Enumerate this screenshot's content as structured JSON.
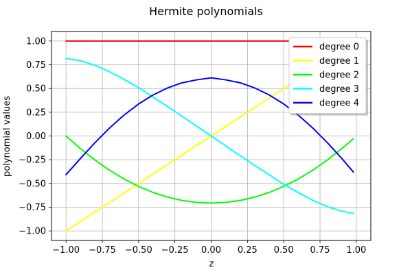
{
  "chart_data": {
    "type": "line",
    "title": "Hermite polynomials",
    "xlabel": "z",
    "ylabel": "polynomial values",
    "xlim": [
      -1.1,
      1.1
    ],
    "ylim": [
      -1.1,
      1.1
    ],
    "xticks": [
      -1.0,
      -0.75,
      -0.5,
      -0.25,
      0.0,
      0.25,
      0.5,
      0.75,
      1.0
    ],
    "xtick_labels": [
      "−1.00",
      "−0.75",
      "−0.50",
      "−0.25",
      "0.00",
      "0.25",
      "0.50",
      "0.75",
      "1.00"
    ],
    "yticks": [
      -1.0,
      -0.75,
      -0.5,
      -0.25,
      0.0,
      0.25,
      0.5,
      0.75,
      1.0
    ],
    "ytick_labels": [
      "−1.00",
      "−0.75",
      "−0.50",
      "−0.25",
      "0.00",
      "0.25",
      "0.50",
      "0.75",
      "1.00"
    ],
    "grid": true,
    "legend_position": "top-right",
    "x": [
      -1.0,
      -0.9,
      -0.8,
      -0.7,
      -0.6,
      -0.5,
      -0.4,
      -0.3,
      -0.2,
      -0.1,
      0.0,
      0.1,
      0.2,
      0.3,
      0.4,
      0.5,
      0.6,
      0.7,
      0.8,
      0.9,
      0.98
    ],
    "series": [
      {
        "name": "degree 0",
        "color": "#ff0000",
        "values": [
          1.0,
          1.0,
          1.0,
          1.0,
          1.0,
          1.0,
          1.0,
          1.0,
          1.0,
          1.0,
          1.0,
          1.0,
          1.0,
          1.0,
          1.0,
          1.0,
          1.0,
          1.0,
          1.0,
          1.0,
          1.0
        ]
      },
      {
        "name": "degree 1",
        "color": "#ffff00",
        "values": [
          -1.0,
          -0.9,
          -0.8,
          -0.7,
          -0.6,
          -0.5,
          -0.4,
          -0.3,
          -0.2,
          -0.1,
          0.0,
          0.1,
          0.2,
          0.3,
          0.4,
          0.5,
          0.6,
          0.7,
          0.8,
          0.9,
          0.98
        ]
      },
      {
        "name": "degree 2",
        "color": "#00ff00",
        "values": [
          0.0,
          -0.134,
          -0.254,
          -0.361,
          -0.453,
          -0.531,
          -0.595,
          -0.644,
          -0.679,
          -0.7,
          -0.707,
          -0.7,
          -0.679,
          -0.644,
          -0.595,
          -0.531,
          -0.453,
          -0.361,
          -0.254,
          -0.134,
          -0.028
        ]
      },
      {
        "name": "degree 3",
        "color": "#00ffff",
        "values": [
          0.816,
          0.792,
          0.744,
          0.677,
          0.596,
          0.51,
          0.408,
          0.31,
          0.208,
          0.104,
          0.0,
          -0.104,
          -0.208,
          -0.31,
          -0.408,
          -0.51,
          -0.596,
          -0.677,
          -0.744,
          -0.792,
          -0.814
        ]
      },
      {
        "name": "degree 4",
        "color": "#0000ff",
        "values": [
          -0.408,
          -0.236,
          -0.07,
          0.084,
          0.22,
          0.337,
          0.432,
          0.506,
          0.56,
          0.591,
          0.612,
          0.591,
          0.56,
          0.506,
          0.432,
          0.337,
          0.22,
          0.084,
          -0.07,
          -0.236,
          -0.38
        ]
      }
    ]
  }
}
